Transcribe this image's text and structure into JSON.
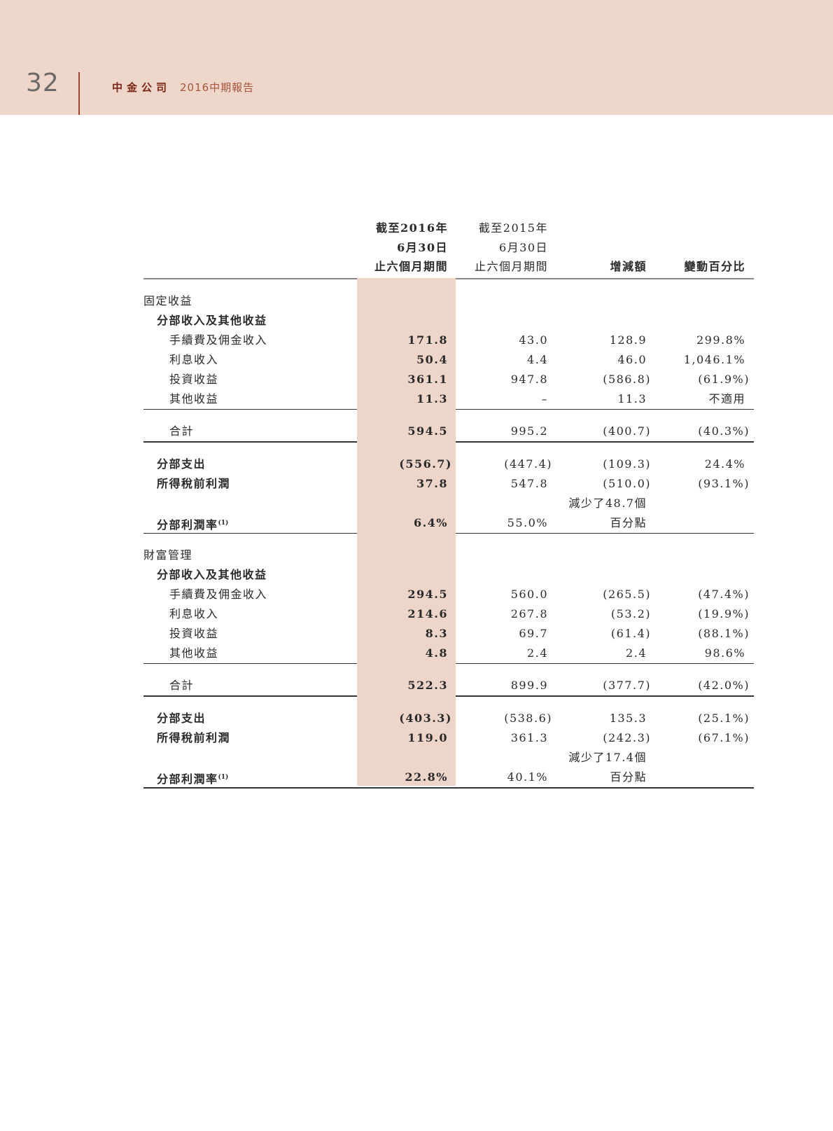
{
  "header": {
    "page_number": "32",
    "brand": "中金公司",
    "report_title": "2016中期報告"
  },
  "colors": {
    "band": "#efd6cb",
    "highlight_column": "#eed5ca",
    "brand": "#7a2514"
  },
  "columns": [
    {
      "lines": [
        "截至2016年",
        "6月30日",
        "止六個月期間"
      ],
      "bold": true
    },
    {
      "lines": [
        "截至2015年",
        "6月30日",
        "止六個月期間"
      ],
      "bold": false
    },
    {
      "lines": [
        "",
        "",
        "增減額"
      ],
      "bold": true
    },
    {
      "lines": [
        "",
        "",
        "變動百分比"
      ],
      "bold": true
    }
  ],
  "sections": [
    {
      "title": "固定收益",
      "revenue_heading": "分部收入及其他收益",
      "revenue_items": [
        {
          "label": "手續費及佣金收入",
          "values": [
            "171.8",
            "43.0",
            "128.9",
            "299.8%"
          ]
        },
        {
          "label": "利息收入",
          "values": [
            "50.4",
            "4.4",
            "46.0",
            "1,046.1%"
          ]
        },
        {
          "label": "投資收益",
          "values": [
            "361.1",
            "947.8",
            "(586.8)",
            "(61.9%)"
          ]
        },
        {
          "label": "其他收益",
          "values": [
            "11.3",
            "–",
            "11.3",
            "不適用"
          ]
        }
      ],
      "total": {
        "label": "合計",
        "values": [
          "594.5",
          "995.2",
          "(400.7)",
          "(40.3%)"
        ]
      },
      "expenses": {
        "label": "分部支出",
        "values": [
          "(556.7)",
          "(447.4)",
          "(109.3)",
          "24.4%"
        ]
      },
      "profit_before_tax": {
        "label": "所得稅前利潤",
        "values": [
          "37.8",
          "547.8",
          "(510.0)",
          "(93.1%)"
        ]
      },
      "margin_change_line1": "減少了48.7個",
      "margin": {
        "label": "分部利潤率",
        "note": "(1)",
        "values": [
          "6.4%",
          "55.0%",
          "百分點",
          ""
        ]
      }
    },
    {
      "title": "財富管理",
      "revenue_heading": "分部收入及其他收益",
      "revenue_items": [
        {
          "label": "手續費及佣金收入",
          "values": [
            "294.5",
            "560.0",
            "(265.5)",
            "(47.4%)"
          ]
        },
        {
          "label": "利息收入",
          "values": [
            "214.6",
            "267.8",
            "(53.2)",
            "(19.9%)"
          ]
        },
        {
          "label": "投資收益",
          "values": [
            "8.3",
            "69.7",
            "(61.4)",
            "(88.1%)"
          ]
        },
        {
          "label": "其他收益",
          "values": [
            "4.8",
            "2.4",
            "2.4",
            "98.6%"
          ]
        }
      ],
      "total": {
        "label": "合計",
        "values": [
          "522.3",
          "899.9",
          "(377.7)",
          "(42.0%)"
        ]
      },
      "expenses": {
        "label": "分部支出",
        "values": [
          "(403.3)",
          "(538.6)",
          "135.3",
          "(25.1%)"
        ]
      },
      "profit_before_tax": {
        "label": "所得稅前利潤",
        "values": [
          "119.0",
          "361.3",
          "(242.3)",
          "(67.1%)"
        ]
      },
      "margin_change_line1": "減少了17.4個",
      "margin": {
        "label": "分部利潤率",
        "note": "(1)",
        "values": [
          "22.8%",
          "40.1%",
          "百分點",
          ""
        ]
      }
    }
  ]
}
